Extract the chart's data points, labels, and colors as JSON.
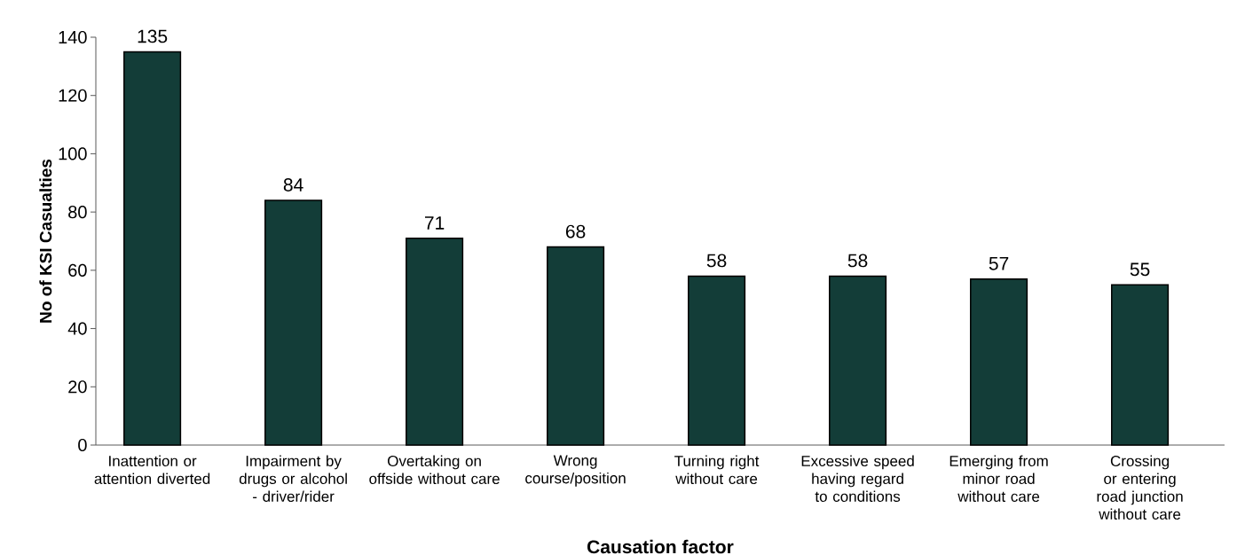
{
  "chart_data": {
    "type": "bar",
    "xlabel": "Causation factor",
    "ylabel": "No of KSI Casualties",
    "categories": [
      "Inattention or attention diverted",
      "Impairment by drugs or alcohol - driver/rider",
      "Overtaking on offside without care",
      "Wrong course/position",
      "Turning right without care",
      "Excessive speed having regard to conditions",
      "Emerging from minor road without care",
      "Crossing or entering road junction without care"
    ],
    "values": [
      135,
      84,
      71,
      68,
      58,
      58,
      57,
      55
    ],
    "color": "#133d38",
    "ylim": [
      0,
      140
    ],
    "yticks": [
      0,
      20,
      40,
      60,
      80,
      100,
      120,
      140
    ],
    "data_labels": true
  }
}
